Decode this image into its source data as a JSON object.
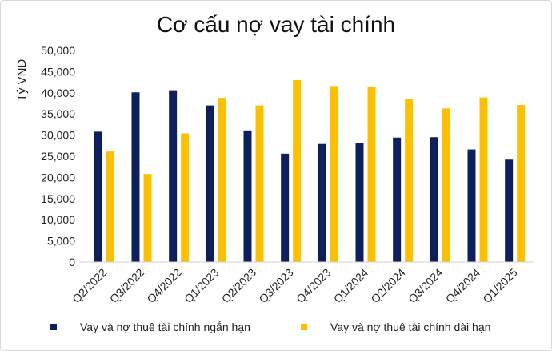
{
  "chart_data": {
    "type": "bar",
    "title": "Cơ cấu nợ vay tài chính",
    "ylabel": "Tỷ VND",
    "xlabel": "",
    "ylim": [
      0,
      50000
    ],
    "yticks": [
      "0",
      "5,000",
      "10,000",
      "15,000",
      "20,000",
      "25,000",
      "30,000",
      "35,000",
      "40,000",
      "45,000",
      "50,000"
    ],
    "categories": [
      "Q2/2022",
      "Q3/2022",
      "Q4/2022",
      "Q1/2023",
      "Q2/2023",
      "Q3/2023",
      "Q4/2023",
      "Q1/2024",
      "Q2/2024",
      "Q3/2024",
      "Q4/2024",
      "Q1/2025"
    ],
    "series": [
      {
        "name": "Vay và nợ thuê tài chính ngắn hạn",
        "color": "#0d1f5c",
        "values": [
          30800,
          40100,
          40600,
          37000,
          31100,
          25600,
          27900,
          28200,
          29400,
          29500,
          26600,
          24200
        ]
      },
      {
        "name": "Vay và nợ thuê tài chính dài hạn",
        "color": "#fcc000",
        "values": [
          26100,
          20800,
          30400,
          38800,
          37000,
          43000,
          41600,
          41400,
          38600,
          36300,
          38900,
          37100
        ]
      }
    ],
    "grid": false,
    "legend": "bottom"
  }
}
